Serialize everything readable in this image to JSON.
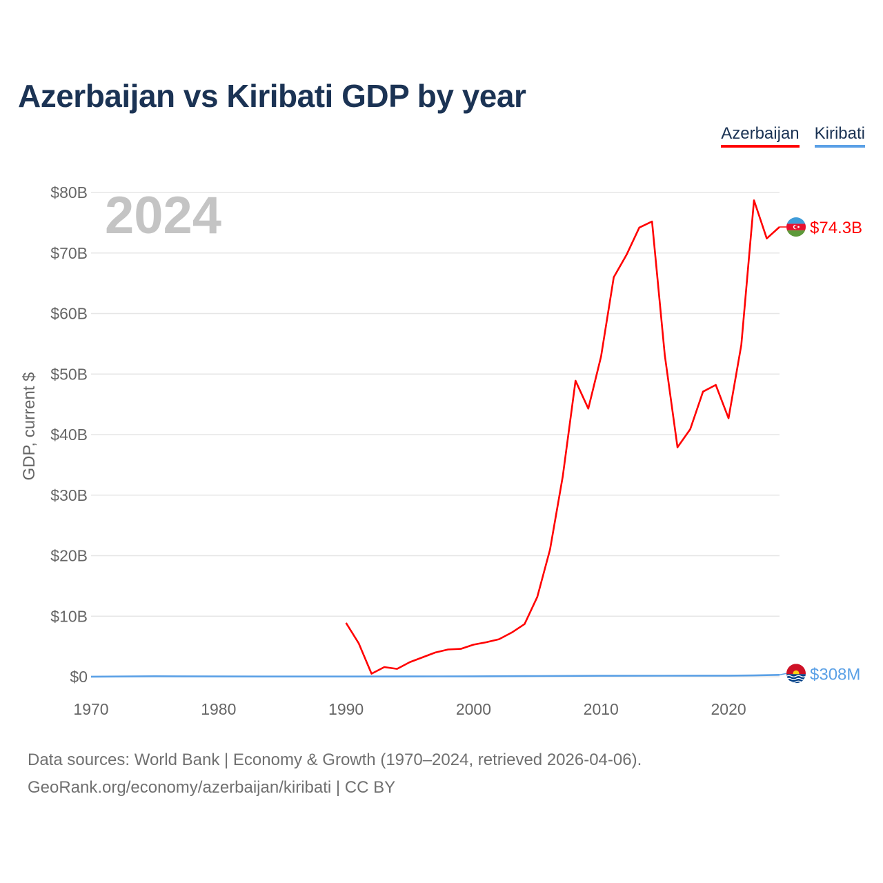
{
  "title": "Azerbaijan vs Kiribati GDP by year",
  "legend": [
    {
      "label": "Azerbaijan",
      "color": "#ff0000"
    },
    {
      "label": "Kiribati",
      "color": "#5aa0e6"
    }
  ],
  "year_label": "2024",
  "footer": {
    "line1": "Data sources: World Bank | Economy & Growth (1970–2024, retrieved 2026-04-06).",
    "line2": "GeoRank.org/economy/azerbaijan/kiribati | CC BY"
  },
  "chart_data": {
    "type": "line",
    "title": "Azerbaijan vs Kiribati GDP by year",
    "xlabel": "",
    "ylabel": "GDP, current $",
    "xlim": [
      1970,
      2024
    ],
    "ylim": [
      0,
      80
    ],
    "y_unit": "billion USD",
    "grid": true,
    "x_ticks": [
      1970,
      1980,
      1990,
      2000,
      2010,
      2020
    ],
    "x_tick_labels": [
      "1970",
      "1980",
      "1990",
      "2000",
      "2010",
      "2020"
    ],
    "y_ticks": [
      0,
      10,
      20,
      30,
      40,
      50,
      60,
      70,
      80
    ],
    "y_tick_labels": [
      "$0",
      "$10B",
      "$20B",
      "$30B",
      "$40B",
      "$50B",
      "$60B",
      "$70B",
      "$80B"
    ],
    "series": [
      {
        "name": "Azerbaijan",
        "color": "#ff0000",
        "end_label": "$74.3B",
        "flag_icon": "azerbaijan-flag-icon",
        "points": [
          [
            1990,
            8.9
          ],
          [
            1991,
            5.5
          ],
          [
            1992,
            0.5
          ],
          [
            1993,
            1.6
          ],
          [
            1994,
            1.3
          ],
          [
            1995,
            2.4
          ],
          [
            1996,
            3.2
          ],
          [
            1997,
            4.0
          ],
          [
            1998,
            4.5
          ],
          [
            1999,
            4.6
          ],
          [
            2000,
            5.3
          ],
          [
            2001,
            5.7
          ],
          [
            2002,
            6.2
          ],
          [
            2003,
            7.3
          ],
          [
            2004,
            8.7
          ],
          [
            2005,
            13.2
          ],
          [
            2006,
            21.0
          ],
          [
            2007,
            33.1
          ],
          [
            2008,
            48.9
          ],
          [
            2009,
            44.3
          ],
          [
            2010,
            52.9
          ],
          [
            2011,
            66.0
          ],
          [
            2012,
            69.7
          ],
          [
            2013,
            74.2
          ],
          [
            2014,
            75.2
          ],
          [
            2015,
            53.1
          ],
          [
            2016,
            37.9
          ],
          [
            2017,
            40.9
          ],
          [
            2018,
            47.1
          ],
          [
            2019,
            48.2
          ],
          [
            2020,
            42.7
          ],
          [
            2021,
            54.8
          ],
          [
            2022,
            78.7
          ],
          [
            2023,
            72.4
          ],
          [
            2024,
            74.3
          ]
        ]
      },
      {
        "name": "Kiribati",
        "color": "#5aa0e6",
        "end_label": "$308M",
        "flag_icon": "kiribati-flag-icon",
        "points": [
          [
            1970,
            0.014
          ],
          [
            1975,
            0.08
          ],
          [
            1980,
            0.04
          ],
          [
            1985,
            0.03
          ],
          [
            1990,
            0.03
          ],
          [
            1995,
            0.05
          ],
          [
            2000,
            0.07
          ],
          [
            2005,
            0.11
          ],
          [
            2010,
            0.16
          ],
          [
            2015,
            0.17
          ],
          [
            2020,
            0.18
          ],
          [
            2022,
            0.22
          ],
          [
            2024,
            0.308
          ]
        ]
      }
    ]
  }
}
